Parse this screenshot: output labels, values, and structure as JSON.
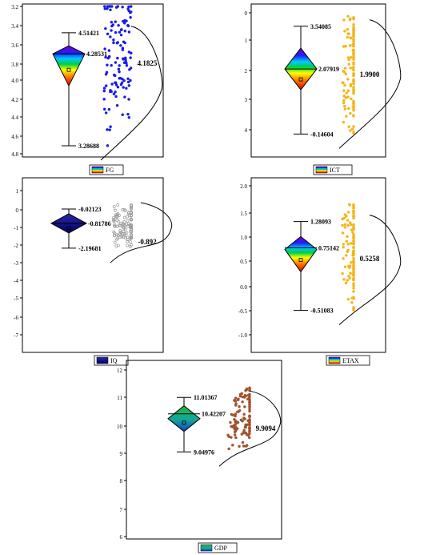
{
  "chart_data": [
    {
      "type": "box-diamond-distribution",
      "variable": "FG",
      "legend": "FG",
      "yticks": [
        "3.2",
        "3.4",
        "3.6",
        "3.8",
        "4.0",
        "4.2",
        "4.4",
        "4.6",
        "4.8"
      ],
      "ylim": [
        3.2,
        4.8
      ],
      "stats": {
        "max": 4.51421,
        "median": 4.28531,
        "min": 3.28688,
        "mean_label": "4.1825"
      },
      "labels": {
        "max": "4.51421",
        "median": "4.28531",
        "min": "3.28688"
      },
      "point_color": "#1a1aee",
      "fill": "rainbow"
    },
    {
      "type": "box-diamond-distribution",
      "variable": "ICT",
      "legend": "ICT",
      "yticks": [
        "0",
        "1",
        "2",
        "3",
        "4"
      ],
      "ylim": [
        -0.3,
        4.1
      ],
      "stats": {
        "max": 3.54085,
        "median": 2.07919,
        "min": -0.14604,
        "mean_label": "1.9900"
      },
      "labels": {
        "max": "3.54085",
        "median": "2.07919",
        "min": "-0.14604"
      },
      "point_color": "#f5b418",
      "fill": "rainbow"
    },
    {
      "type": "box-diamond-distribution",
      "variable": "IQ",
      "legend": "IQ",
      "yticks": [
        "1",
        "0",
        "-1",
        "-2",
        "-3",
        "-4",
        "-5",
        "-6",
        "-7"
      ],
      "ylim": [
        -7,
        1.5
      ],
      "stats": {
        "max": -0.02123,
        "median": -0.81786,
        "min": -2.19681,
        "mean_label": "-0.892"
      },
      "labels": {
        "max": "-0.02123",
        "median": "-0.81786",
        "min": "-2.19681"
      },
      "point_color": "#9a9a9a",
      "fill": "navy"
    },
    {
      "type": "box-diamond-distribution",
      "variable": "ETAX",
      "legend": "ETAX",
      "yticks": [
        "2.0",
        "1.5",
        "1.0",
        "0.5",
        "0.0",
        "-0.5",
        "-1.0"
      ],
      "ylim": [
        -1.1,
        2.0
      ],
      "stats": {
        "max": 1.28093,
        "median": 0.75142,
        "min": -0.51083,
        "mean_label": "0.5258"
      },
      "labels": {
        "max": "1.28093",
        "median": "0.75142",
        "min": "-0.51083"
      },
      "point_color": "#f5b418",
      "fill": "rainbow"
    },
    {
      "type": "box-diamond-distribution",
      "variable": "GDP",
      "legend": "GDP",
      "yticks": [
        "12",
        "11",
        "10",
        "9",
        "8",
        "7",
        "6"
      ],
      "ylim": [
        6,
        12
      ],
      "stats": {
        "max": 11.01367,
        "median": 10.42207,
        "min": 9.04976,
        "mean_label": "9.9094"
      },
      "labels": {
        "max": "11.01367",
        "median": "10.42207",
        "min": "9.04976"
      },
      "point_color": "#a0522d",
      "fill": "green-blue"
    }
  ]
}
